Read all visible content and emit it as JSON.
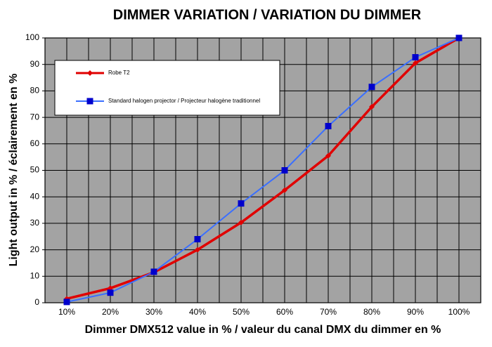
{
  "chart_data": {
    "type": "line",
    "title": "DIMMER VARIATION / VARIATION DU DIMMER",
    "x_label": "Dimmer DMX512 value in % / valeur du canal DMX du dimmer en %",
    "y_label": "Light output in % / éclairement en %",
    "categories": [
      "10%",
      "20%",
      "30%",
      "40%",
      "50%",
      "60%",
      "70%",
      "80%",
      "90%",
      "100%"
    ],
    "series": [
      {
        "name": "Robe T2",
        "color": "#e00000",
        "values": [
          1.5,
          5.5,
          11.5,
          20,
          30.3,
          42.5,
          55.5,
          74,
          90.5,
          100
        ]
      },
      {
        "name": "Standard halogen projector / Projecteur halogène traditionnel",
        "color": "#3a6fff",
        "values": [
          0.3,
          3.8,
          11.7,
          24,
          37.5,
          50,
          66.7,
          81.5,
          92.7,
          100
        ]
      }
    ],
    "ylim": [
      0,
      100
    ],
    "yticks": [
      0,
      10,
      20,
      30,
      40,
      50,
      60,
      70,
      80,
      90,
      100
    ],
    "grid": true,
    "legend": "upper-left"
  }
}
